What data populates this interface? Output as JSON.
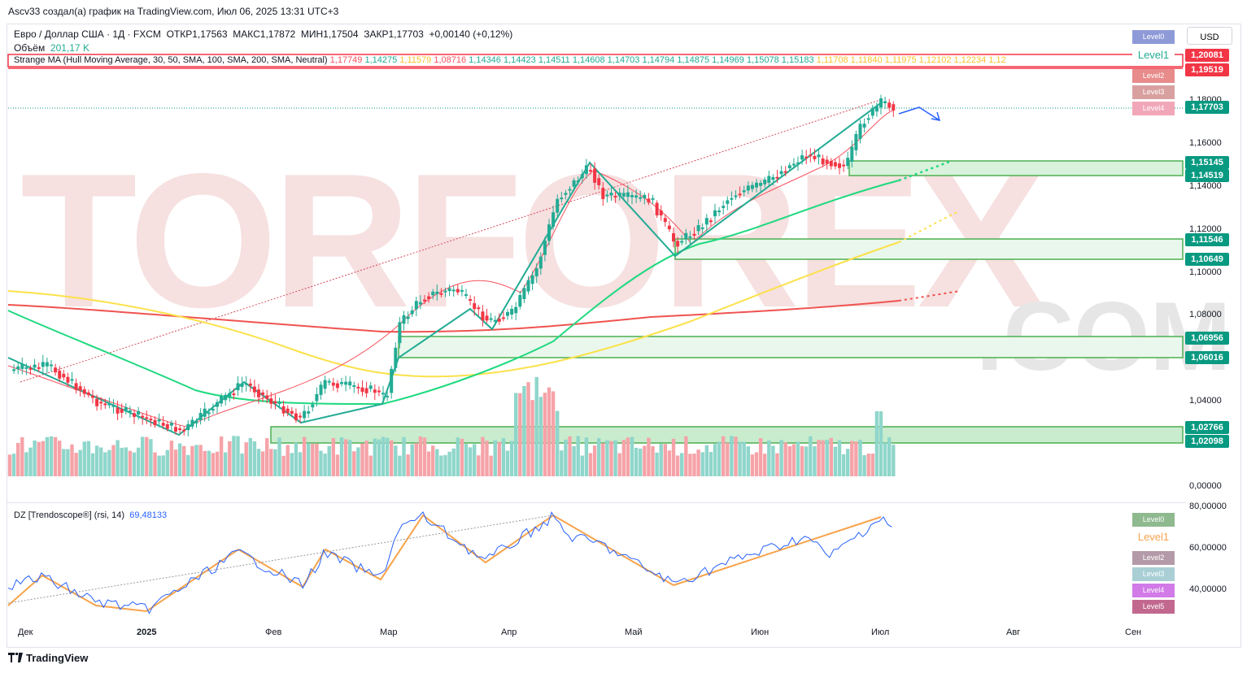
{
  "header": {
    "author_line": "Ascv33 создал(а) график на TradingView.com, Июл 06, 2025 13:31 UTC+3"
  },
  "symbol": {
    "title": "Евро / Доллар США · 1Д · FXCM",
    "open": "ОТКР1,17563",
    "high": "МАКС1,17872",
    "low": "МИН1,17504",
    "close": "ЗАКР1,17703",
    "change": "+0,00140 (+0,12%)"
  },
  "volume": {
    "label": "Объём",
    "value": "201,17 K"
  },
  "indicator_ma": {
    "label": "Strange MA (Hull Moving Average, 30, 50, SMA, 100, SMA, 200, SMA, Neutral)",
    "values": [
      "1,17749",
      "1,14275",
      "1,11579",
      "1,08716",
      "1,14346",
      "1,14423",
      "1,14511",
      "1,14608",
      "1,14703",
      "1,14794",
      "1,14875",
      "1,14969",
      "1,15078",
      "1,15183",
      "1,11708",
      "1,11840",
      "1,11975",
      "1,12102",
      "1,12234",
      "1,12"
    ],
    "value_colors": [
      "#f7525f",
      "#22ab94",
      "#fbc02d",
      "#f7525f",
      "#22ab94",
      "#22ab94",
      "#22ab94",
      "#22ab94",
      "#22ab94",
      "#22ab94",
      "#22ab94",
      "#22ab94",
      "#22ab94",
      "#22ab94",
      "#fbc02d",
      "#fbc02d",
      "#fbc02d",
      "#fbc02d",
      "#fbc02d",
      "#fbc02d"
    ]
  },
  "currency_button": "USD",
  "price_axis": [
    "1,18000",
    "1,16000",
    "1,14000",
    "1,12000",
    "1,10000",
    "1,08000",
    "1,04000",
    "0,00000"
  ],
  "price_tags": [
    {
      "value": "1,20081",
      "color": "#f23645"
    },
    {
      "value": "1,19519",
      "color": "#f23645"
    },
    {
      "value": "1,17703",
      "color": "#089981"
    },
    {
      "value": "1,15145",
      "color": "#089981"
    },
    {
      "value": "1,14519",
      "color": "#089981"
    },
    {
      "value": "1,11546",
      "color": "#089981"
    },
    {
      "value": "1,10649",
      "color": "#089981"
    },
    {
      "value": "1,06956",
      "color": "#089981"
    },
    {
      "value": "1,06016",
      "color": "#089981"
    },
    {
      "value": "1,02766",
      "color": "#089981"
    },
    {
      "value": "1,02098",
      "color": "#089981"
    }
  ],
  "main_levels": [
    {
      "label": "Level0",
      "color": "#8e9ad8"
    },
    {
      "label": "Level1",
      "color": "#ffffff"
    },
    {
      "label": "Level2",
      "color": "#e88b8b"
    },
    {
      "label": "Level3",
      "color": "#d9a0a0"
    },
    {
      "label": "Level4",
      "color": "#f2a7b9"
    }
  ],
  "level1_label": "Level1",
  "watermark": {
    "main": "TORFOREX",
    "suffix": ".COM"
  },
  "rsi": {
    "label": "DZ [Trendoscope®] (rsi, 14)",
    "value": "69,48133",
    "axis": [
      "80,00000",
      "60,00000",
      "40,00000"
    ]
  },
  "rsi_levels": [
    {
      "label": "Level0",
      "color": "#8fb98f"
    },
    {
      "label": "Level1",
      "color": "#ffffff"
    },
    {
      "label": "Level2",
      "color": "#b49aa8"
    },
    {
      "label": "Level3",
      "color": "#a9cfd5"
    },
    {
      "label": "Level4",
      "color": "#d17ae8"
    },
    {
      "label": "Level5",
      "color": "#c2688e"
    }
  ],
  "time_axis": [
    "Дек",
    "2025",
    "Фев",
    "Мар",
    "Апр",
    "Май",
    "Июн",
    "Июл",
    "Авг",
    "Сен"
  ],
  "footer": {
    "brand": "TradingView"
  }
}
